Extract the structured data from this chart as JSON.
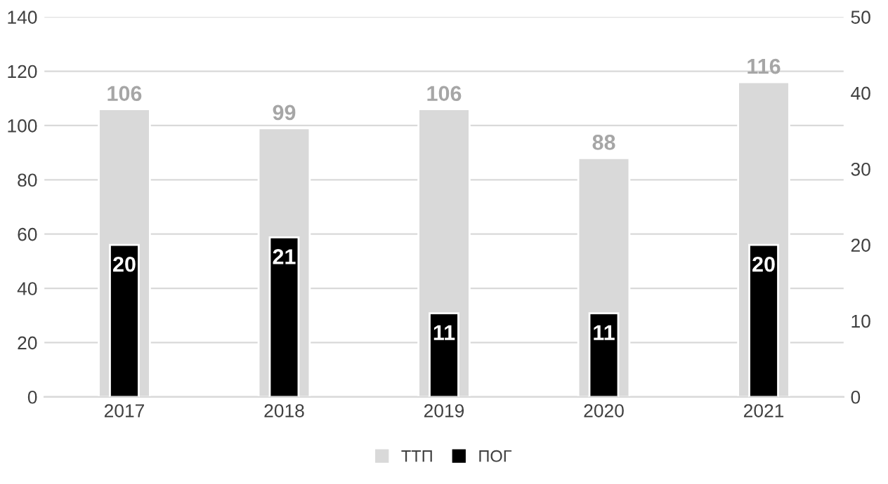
{
  "chart_data": {
    "type": "bar",
    "categories": [
      "2017",
      "2018",
      "2019",
      "2020",
      "2021"
    ],
    "series": [
      {
        "name": "ТТП",
        "color": "#d9d9d9",
        "values": [
          106,
          99,
          106,
          88,
          116
        ]
      },
      {
        "name": "ПОГ",
        "color": "#000000",
        "values": [
          20,
          21,
          11,
          11,
          20
        ],
        "axis": "y2"
      }
    ],
    "ylim": [
      0,
      140
    ],
    "yticks": [
      0,
      20,
      40,
      60,
      80,
      100,
      120,
      140
    ],
    "y2lim": [
      0,
      50
    ],
    "y2ticks": [
      0,
      10,
      20,
      30,
      40,
      50
    ],
    "grid": "y",
    "legend": "bottom",
    "data_labels": true
  }
}
